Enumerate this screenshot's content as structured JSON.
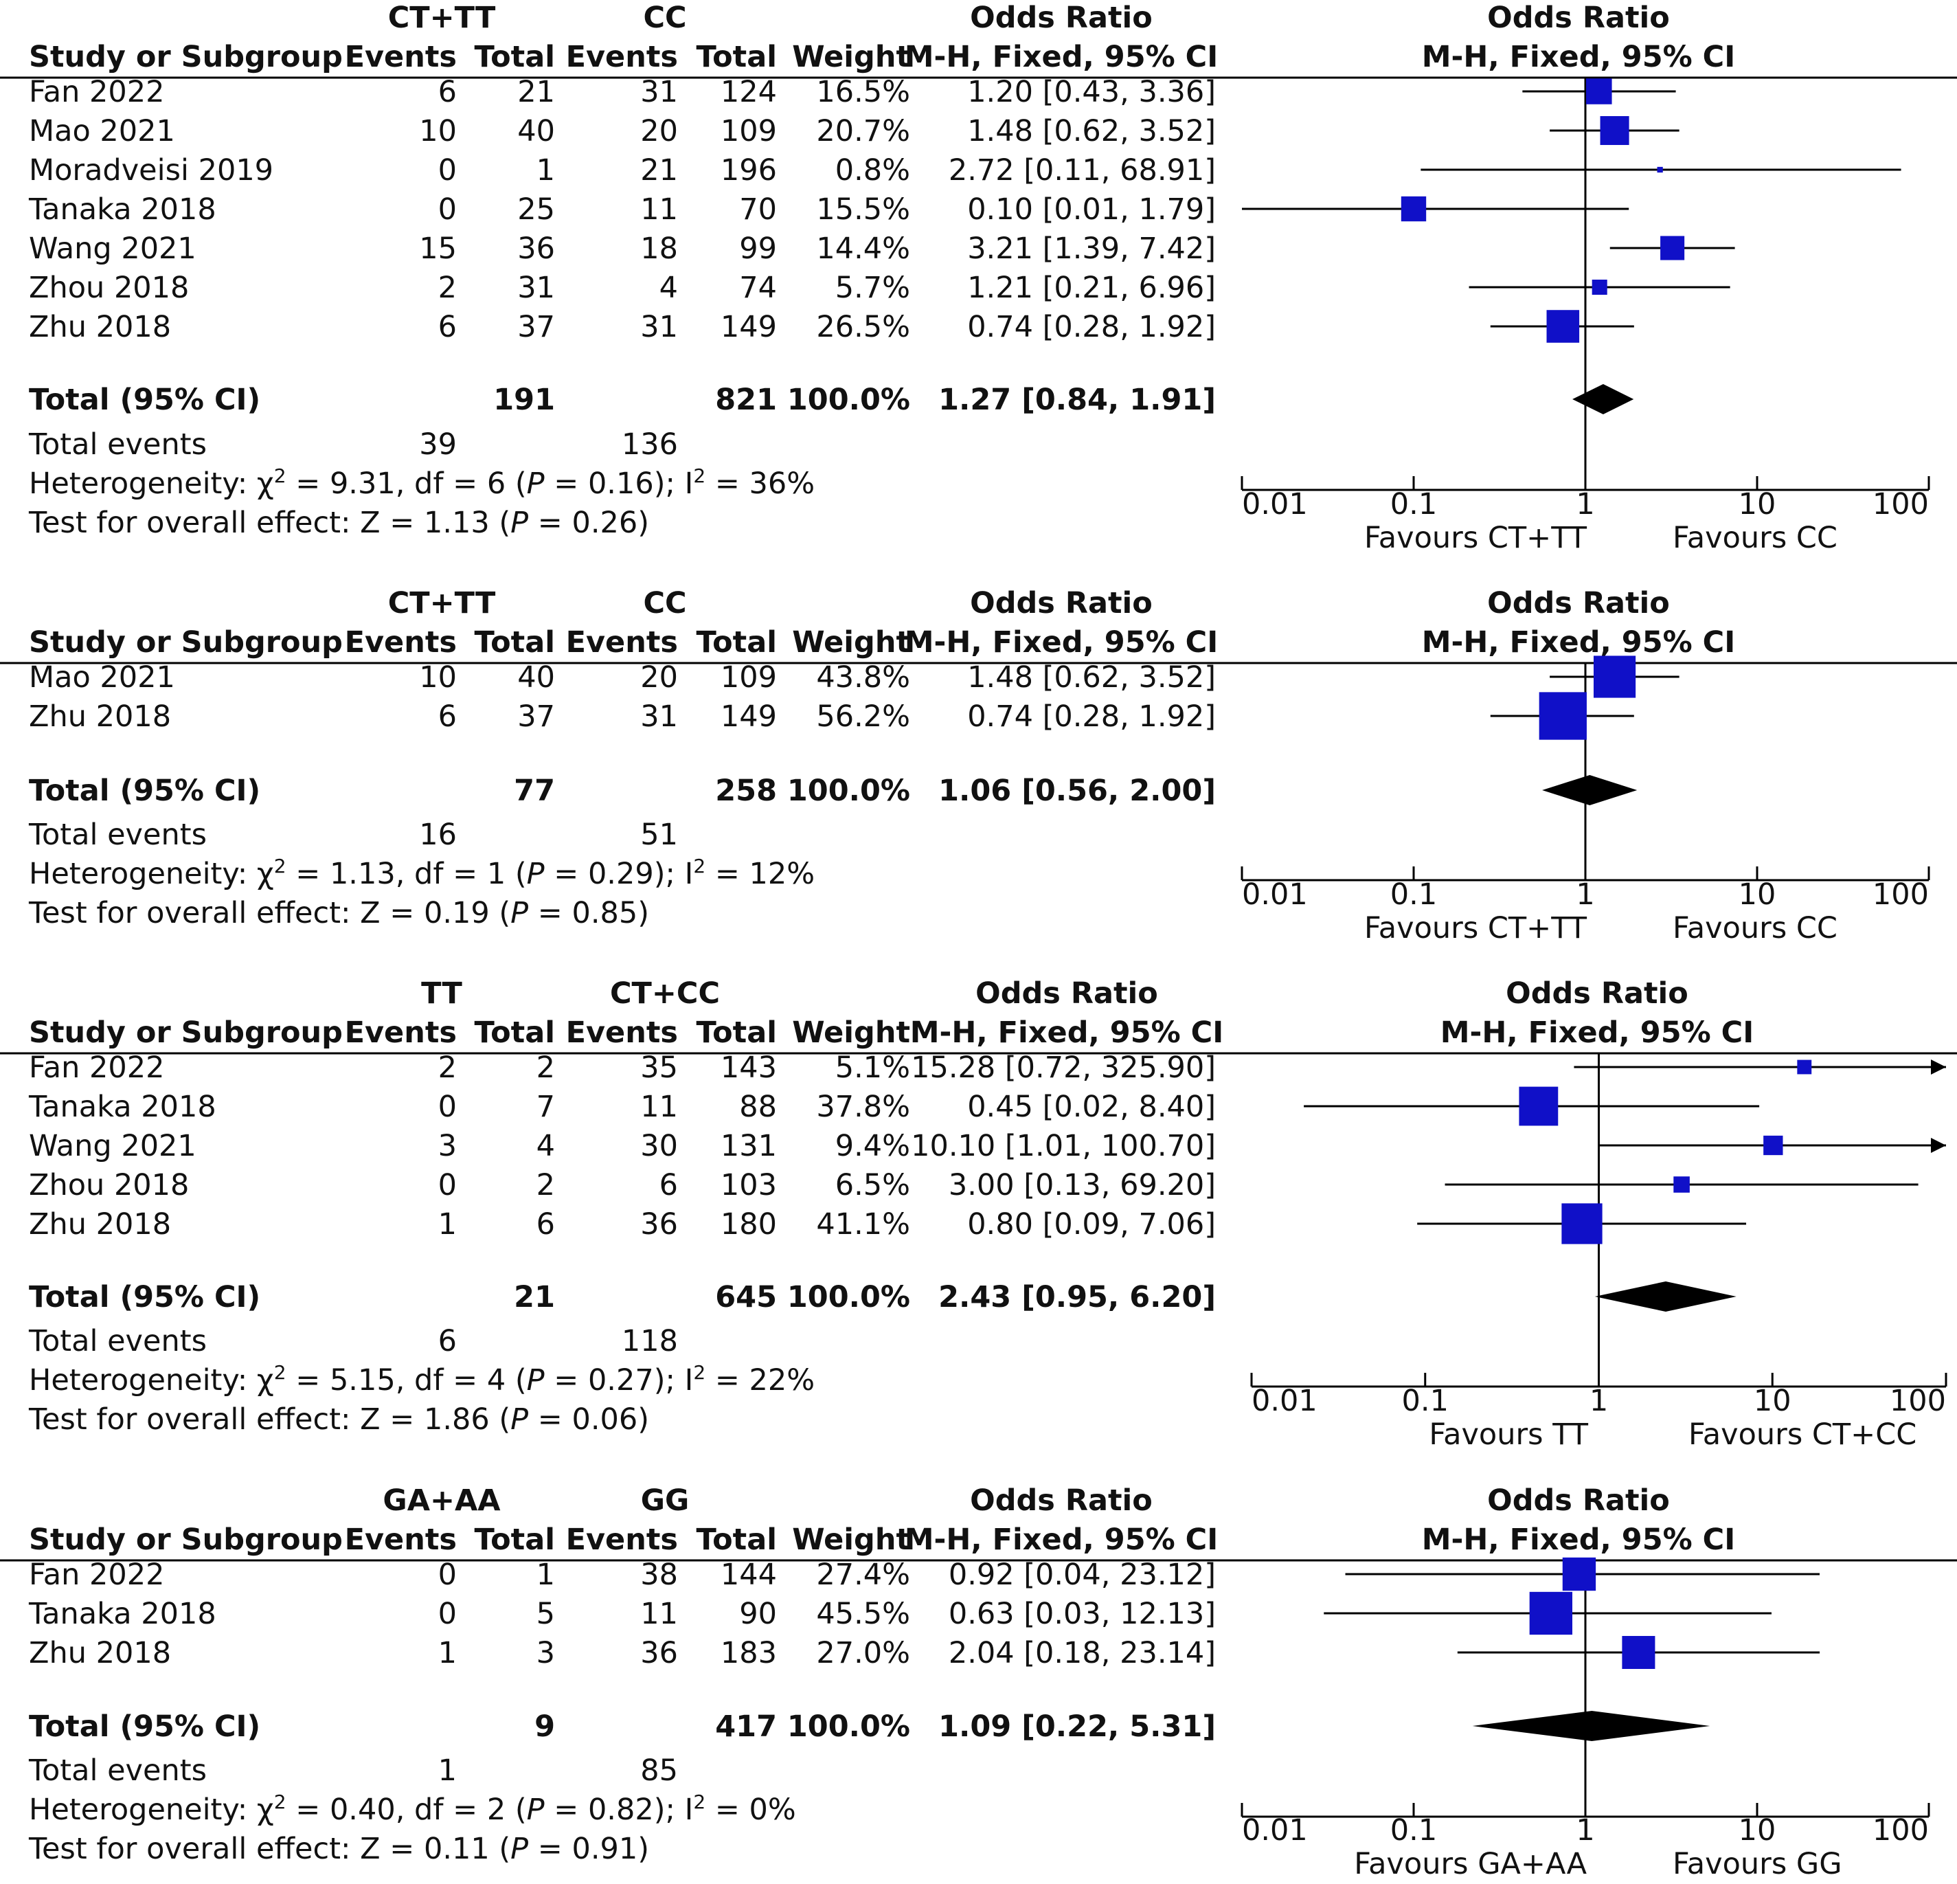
{
  "colors": {
    "marker": "#1010c8",
    "diamond": "#000000",
    "line": "#000000",
    "text": "#111111"
  },
  "headers": {
    "study": "Study or Subgroup",
    "events": "Events",
    "total": "Total",
    "weight": "Weight",
    "or_title": "Odds Ratio",
    "or_method": "M-H, Fixed, 95% CI",
    "plot_title": "Odds Ratio",
    "plot_method": "M-H, Fixed, 95% CI"
  },
  "chart_data": [
    {
      "type": "forest",
      "group1": "CT+TT",
      "group2": "CC",
      "studies": [
        {
          "name": "Fan 2022",
          "e1": "6",
          "n1": "21",
          "e2": "31",
          "n2": "124",
          "weight": "16.5%",
          "ci_text": "1.20 [0.43, 3.36]",
          "or": 1.2,
          "lo": 0.43,
          "hi": 3.36,
          "w": 16.5
        },
        {
          "name": "Mao 2021",
          "e1": "10",
          "n1": "40",
          "e2": "20",
          "n2": "109",
          "weight": "20.7%",
          "ci_text": "1.48 [0.62, 3.52]",
          "or": 1.48,
          "lo": 0.62,
          "hi": 3.52,
          "w": 20.7
        },
        {
          "name": "Moradveisi 2019",
          "e1": "0",
          "n1": "1",
          "e2": "21",
          "n2": "196",
          "weight": "0.8%",
          "ci_text": "2.72 [0.11, 68.91]",
          "or": 2.72,
          "lo": 0.11,
          "hi": 68.91,
          "w": 0.8
        },
        {
          "name": "Tanaka 2018",
          "e1": "0",
          "n1": "25",
          "e2": "11",
          "n2": "70",
          "weight": "15.5%",
          "ci_text": "0.10 [0.01, 1.79]",
          "or": 0.1,
          "lo": 0.01,
          "hi": 1.79,
          "w": 15.5
        },
        {
          "name": "Wang 2021",
          "e1": "15",
          "n1": "36",
          "e2": "18",
          "n2": "99",
          "weight": "14.4%",
          "ci_text": "3.21 [1.39, 7.42]",
          "or": 3.21,
          "lo": 1.39,
          "hi": 7.42,
          "w": 14.4
        },
        {
          "name": "Zhou 2018",
          "e1": "2",
          "n1": "31",
          "e2": "4",
          "n2": "74",
          "weight": "5.7%",
          "ci_text": "1.21 [0.21, 6.96]",
          "or": 1.21,
          "lo": 0.21,
          "hi": 6.96,
          "w": 5.7
        },
        {
          "name": "Zhu 2018",
          "e1": "6",
          "n1": "37",
          "e2": "31",
          "n2": "149",
          "weight": "26.5%",
          "ci_text": "0.74 [0.28, 1.92]",
          "or": 0.74,
          "lo": 0.28,
          "hi": 1.92,
          "w": 26.5
        }
      ],
      "total": {
        "label": "Total (95% CI)",
        "n1": "191",
        "n2": "821",
        "weight": "100.0%",
        "ci_text": "1.27 [0.84, 1.91]",
        "or": 1.27,
        "lo": 0.84,
        "hi": 1.91
      },
      "total_events": {
        "label": "Total events",
        "e1": "39",
        "e2": "136"
      },
      "heterogeneity": {
        "label": "Heterogeneity:",
        "chi2": "9.31",
        "df": "6",
        "p": "0.16",
        "i2": "36%"
      },
      "overall": {
        "label": "Test for overall effect:",
        "z": "1.13",
        "p": "0.26"
      },
      "axis": {
        "ticks": [
          "0.01",
          "0.1",
          "1",
          "10",
          "100"
        ],
        "favours_left": "Favours CT+TT",
        "favours_right": "Favours CC",
        "scale": "log",
        "xlim": [
          0.01,
          100
        ]
      }
    },
    {
      "type": "forest",
      "group1": "CT+TT",
      "group2": "CC",
      "studies": [
        {
          "name": "Mao 2021",
          "e1": "10",
          "n1": "40",
          "e2": "20",
          "n2": "109",
          "weight": "43.8%",
          "ci_text": "1.48 [0.62, 3.52]",
          "or": 1.48,
          "lo": 0.62,
          "hi": 3.52,
          "w": 43.8
        },
        {
          "name": "Zhu 2018",
          "e1": "6",
          "n1": "37",
          "e2": "31",
          "n2": "149",
          "weight": "56.2%",
          "ci_text": "0.74 [0.28, 1.92]",
          "or": 0.74,
          "lo": 0.28,
          "hi": 1.92,
          "w": 56.2
        }
      ],
      "total": {
        "label": "Total (95% CI)",
        "n1": "77",
        "n2": "258",
        "weight": "100.0%",
        "ci_text": "1.06 [0.56, 2.00]",
        "or": 1.06,
        "lo": 0.56,
        "hi": 2.0
      },
      "total_events": {
        "label": "Total events",
        "e1": "16",
        "e2": "51"
      },
      "heterogeneity": {
        "label": "Heterogeneity:",
        "chi2": "1.13",
        "df": "1",
        "p": "0.29",
        "i2": "12%"
      },
      "overall": {
        "label": "Test for overall effect:",
        "z": "0.19",
        "p": "0.85"
      },
      "axis": {
        "ticks": [
          "0.01",
          "0.1",
          "1",
          "10",
          "100"
        ],
        "favours_left": "Favours CT+TT",
        "favours_right": "Favours CC",
        "scale": "log",
        "xlim": [
          0.01,
          100
        ]
      }
    },
    {
      "type": "forest",
      "group1": "TT",
      "group2": "CT+CC",
      "studies": [
        {
          "name": "Fan 2022",
          "e1": "2",
          "n1": "2",
          "e2": "35",
          "n2": "143",
          "weight": "5.1%",
          "ci_text": "15.28 [0.72, 325.90]",
          "or": 15.28,
          "lo": 0.72,
          "hi": 325.9,
          "w": 5.1
        },
        {
          "name": "Tanaka 2018",
          "e1": "0",
          "n1": "7",
          "e2": "11",
          "n2": "88",
          "weight": "37.8%",
          "ci_text": "0.45 [0.02, 8.40]",
          "or": 0.45,
          "lo": 0.02,
          "hi": 8.4,
          "w": 37.8
        },
        {
          "name": "Wang 2021",
          "e1": "3",
          "n1": "4",
          "e2": "30",
          "n2": "131",
          "weight": "9.4%",
          "ci_text": "10.10 [1.01, 100.70]",
          "or": 10.1,
          "lo": 1.01,
          "hi": 100.7,
          "w": 9.4
        },
        {
          "name": "Zhou 2018",
          "e1": "0",
          "n1": "2",
          "e2": "6",
          "n2": "103",
          "weight": "6.5%",
          "ci_text": "3.00 [0.13, 69.20]",
          "or": 3.0,
          "lo": 0.13,
          "hi": 69.2,
          "w": 6.5
        },
        {
          "name": "Zhu 2018",
          "e1": "1",
          "n1": "6",
          "e2": "36",
          "n2": "180",
          "weight": "41.1%",
          "ci_text": "0.80 [0.09, 7.06]",
          "or": 0.8,
          "lo": 0.09,
          "hi": 7.06,
          "w": 41.1
        }
      ],
      "total": {
        "label": "Total (95% CI)",
        "n1": "21",
        "n2": "645",
        "weight": "100.0%",
        "ci_text": "2.43 [0.95, 6.20]",
        "or": 2.43,
        "lo": 0.95,
        "hi": 6.2
      },
      "total_events": {
        "label": "Total events",
        "e1": "6",
        "e2": "118"
      },
      "heterogeneity": {
        "label": "Heterogeneity:",
        "chi2": "5.15",
        "df": "4",
        "p": "0.27",
        "i2": "22%"
      },
      "overall": {
        "label": "Test for overall effect:",
        "z": "1.86",
        "p": "0.06"
      },
      "axis": {
        "ticks": [
          "0.01",
          "0.1",
          "1",
          "10",
          "100"
        ],
        "favours_left": "Favours TT",
        "favours_right": "Favours CT+CC",
        "scale": "log",
        "xlim": [
          0.01,
          100
        ]
      }
    },
    {
      "type": "forest",
      "group1": "GA+AA",
      "group2": "GG",
      "studies": [
        {
          "name": "Fan 2022",
          "e1": "0",
          "n1": "1",
          "e2": "38",
          "n2": "144",
          "weight": "27.4%",
          "ci_text": "0.92 [0.04, 23.12]",
          "or": 0.92,
          "lo": 0.04,
          "hi": 23.12,
          "w": 27.4
        },
        {
          "name": "Tanaka 2018",
          "e1": "0",
          "n1": "5",
          "e2": "11",
          "n2": "90",
          "weight": "45.5%",
          "ci_text": "0.63 [0.03, 12.13]",
          "or": 0.63,
          "lo": 0.03,
          "hi": 12.13,
          "w": 45.5
        },
        {
          "name": "Zhu 2018",
          "e1": "1",
          "n1": "3",
          "e2": "36",
          "n2": "183",
          "weight": "27.0%",
          "ci_text": "2.04 [0.18, 23.14]",
          "or": 2.04,
          "lo": 0.18,
          "hi": 23.14,
          "w": 27.0
        }
      ],
      "total": {
        "label": "Total (95% CI)",
        "n1": "9",
        "n2": "417",
        "weight": "100.0%",
        "ci_text": "1.09 [0.22, 5.31]",
        "or": 1.09,
        "lo": 0.22,
        "hi": 5.31
      },
      "total_events": {
        "label": "Total events",
        "e1": "1",
        "e2": "85"
      },
      "heterogeneity": {
        "label": "Heterogeneity:",
        "chi2": "0.40",
        "df": "2",
        "p": "0.82",
        "i2": "0%"
      },
      "overall": {
        "label": "Test for overall effect:",
        "z": "0.11",
        "p": "0.91"
      },
      "axis": {
        "ticks": [
          "0.01",
          "0.1",
          "1",
          "10",
          "100"
        ],
        "favours_left": "Favours GA+AA",
        "favours_right": "Favours GG",
        "scale": "log",
        "xlim": [
          0.01,
          100
        ]
      }
    }
  ]
}
